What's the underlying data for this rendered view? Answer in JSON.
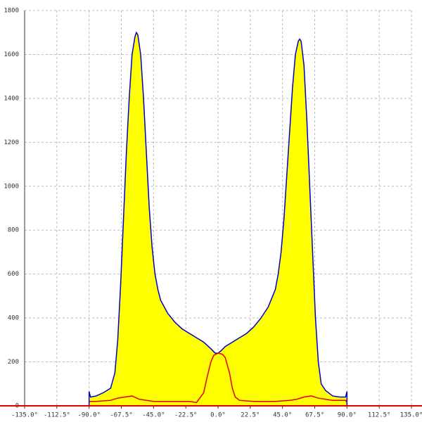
{
  "chart_data": {
    "type": "area",
    "xlim": [
      -135,
      135
    ],
    "ylim": [
      0,
      1800
    ],
    "xticks": [
      {
        "value": -135,
        "label": "-135.0°"
      },
      {
        "value": -112.5,
        "label": "-112.5°"
      },
      {
        "value": -90,
        "label": "-90.0°"
      },
      {
        "value": -67.5,
        "label": "-67.5°"
      },
      {
        "value": -45,
        "label": "-45.0°"
      },
      {
        "value": -22.5,
        "label": "-22.5°"
      },
      {
        "value": 0,
        "label": "0.0°"
      },
      {
        "value": 22.5,
        "label": "22.5°"
      },
      {
        "value": 45,
        "label": "45.0°"
      },
      {
        "value": 67.5,
        "label": "67.5°"
      },
      {
        "value": 90,
        "label": "90.0°"
      },
      {
        "value": 112.5,
        "label": "112.5°"
      },
      {
        "value": 135,
        "label": "135.0°"
      }
    ],
    "yticks": [
      0,
      200,
      400,
      600,
      800,
      1000,
      1200,
      1400,
      1600,
      1800
    ],
    "grid": true,
    "series": [
      {
        "color": "#0000cc",
        "fill": "#ffff00",
        "x": [
          -90,
          -89,
          -85,
          -80,
          -75,
          -72,
          -70,
          -68,
          -66,
          -64,
          -62,
          -60,
          -58,
          -57,
          -56,
          -54,
          -52,
          -50,
          -48,
          -46,
          -44,
          -42,
          -40,
          -35,
          -30,
          -25,
          -20,
          -15,
          -10,
          -5,
          -2,
          0,
          2,
          5,
          10,
          15,
          20,
          25,
          30,
          35,
          40,
          42,
          44,
          46,
          48,
          50,
          52,
          54,
          56,
          57,
          58,
          60,
          62,
          64,
          66,
          68,
          70,
          72,
          75,
          80,
          85,
          89,
          90
        ],
        "values": [
          65,
          40,
          45,
          60,
          80,
          150,
          300,
          550,
          850,
          1150,
          1400,
          1600,
          1680,
          1700,
          1690,
          1600,
          1400,
          1150,
          900,
          720,
          600,
          530,
          480,
          420,
          380,
          350,
          330,
          310,
          290,
          260,
          240,
          240,
          250,
          270,
          290,
          310,
          330,
          360,
          400,
          450,
          530,
          600,
          700,
          850,
          1050,
          1250,
          1450,
          1600,
          1660,
          1670,
          1660,
          1550,
          1300,
          1000,
          700,
          400,
          200,
          100,
          70,
          45,
          40,
          40,
          65
        ]
      },
      {
        "color": "#e00000",
        "x": [
          -90,
          -85,
          -75,
          -70,
          -65,
          -60,
          -55,
          -45,
          -30,
          -20,
          -15,
          -10,
          -8,
          -5,
          -3,
          0,
          3,
          5,
          8,
          10,
          12,
          15,
          25,
          40,
          50,
          55,
          60,
          65,
          70,
          80,
          89,
          90
        ],
        "values": [
          20,
          20,
          25,
          35,
          40,
          45,
          30,
          20,
          20,
          20,
          15,
          60,
          120,
          200,
          230,
          240,
          235,
          220,
          150,
          80,
          40,
          25,
          20,
          20,
          25,
          30,
          40,
          45,
          35,
          25,
          25,
          15
        ]
      }
    ]
  }
}
